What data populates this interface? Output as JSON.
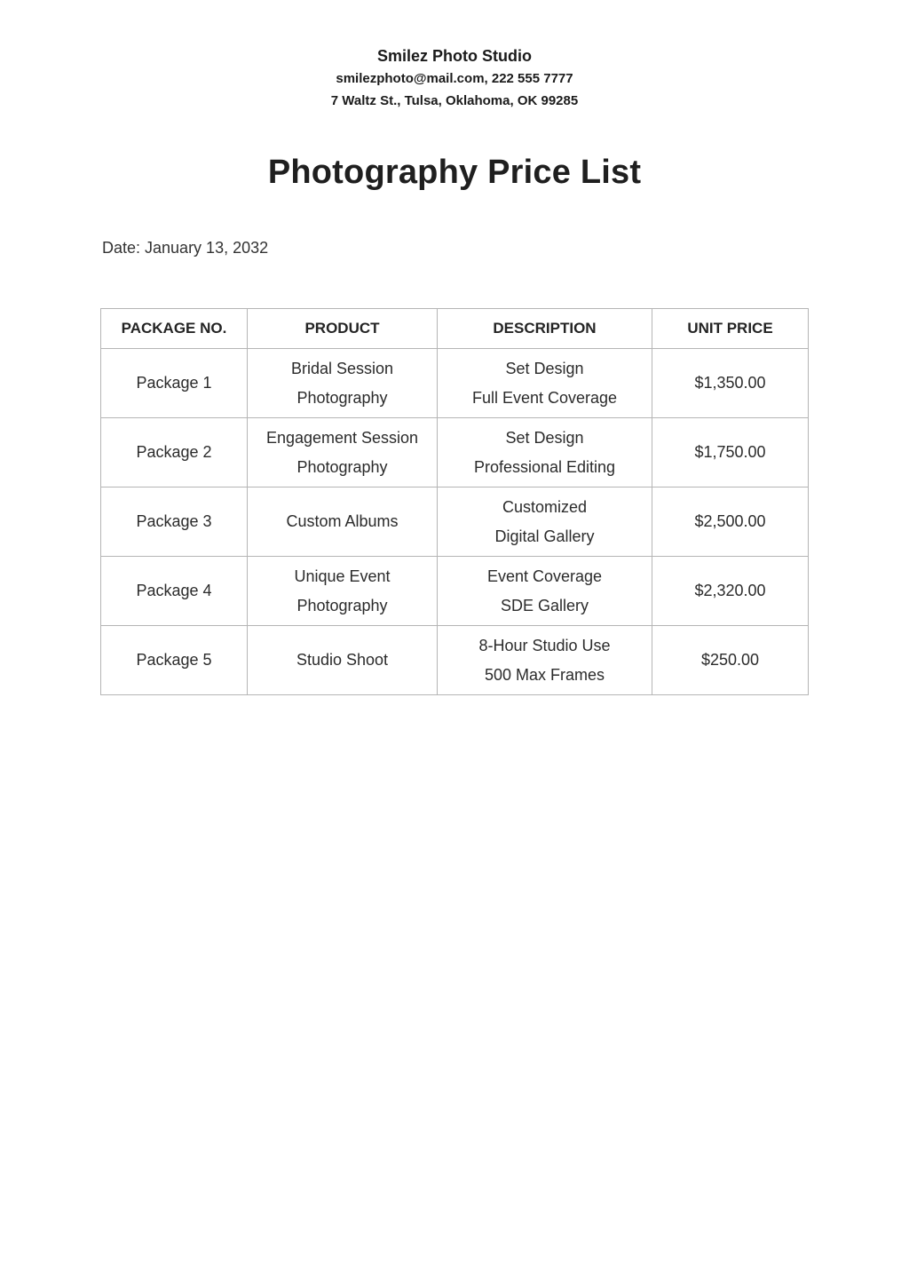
{
  "page": {
    "background": "#ffffff",
    "text_color": "#212121",
    "border_color": "#b5b5b5"
  },
  "header": {
    "studio_name": "Smilez Photo Studio",
    "contact_line": "smilezphoto@mail.com, 222 555 7777",
    "address_line": "7 Waltz St., Tulsa, Oklahoma, OK 99285"
  },
  "document": {
    "title": "Photography Price List",
    "date_line": "Date: January 13, 2032"
  },
  "price_table": {
    "columns": [
      "PACKAGE NO.",
      "PRODUCT",
      "DESCRIPTION",
      "UNIT PRICE"
    ],
    "rows": [
      {
        "package_no": "Package 1",
        "product": [
          "Bridal Session",
          "Photography"
        ],
        "description": [
          "Set Design",
          "Full Event Coverage"
        ],
        "unit_price": "$1,350.00"
      },
      {
        "package_no": "Package 2",
        "product": [
          "Engagement Session",
          "Photography"
        ],
        "description": [
          "Set Design",
          "Professional Editing"
        ],
        "unit_price": "$1,750.00"
      },
      {
        "package_no": "Package 3",
        "product": [
          "Custom Albums"
        ],
        "description": [
          "Customized",
          "Digital Gallery"
        ],
        "unit_price": "$2,500.00"
      },
      {
        "package_no": "Package 4",
        "product": [
          "Unique Event",
          "Photography"
        ],
        "description": [
          "Event Coverage",
          "SDE Gallery"
        ],
        "unit_price": "$2,320.00"
      },
      {
        "package_no": "Package 5",
        "product": [
          "Studio Shoot"
        ],
        "description": [
          "8-Hour Studio Use",
          "500 Max Frames"
        ],
        "unit_price": "$250.00"
      }
    ]
  }
}
